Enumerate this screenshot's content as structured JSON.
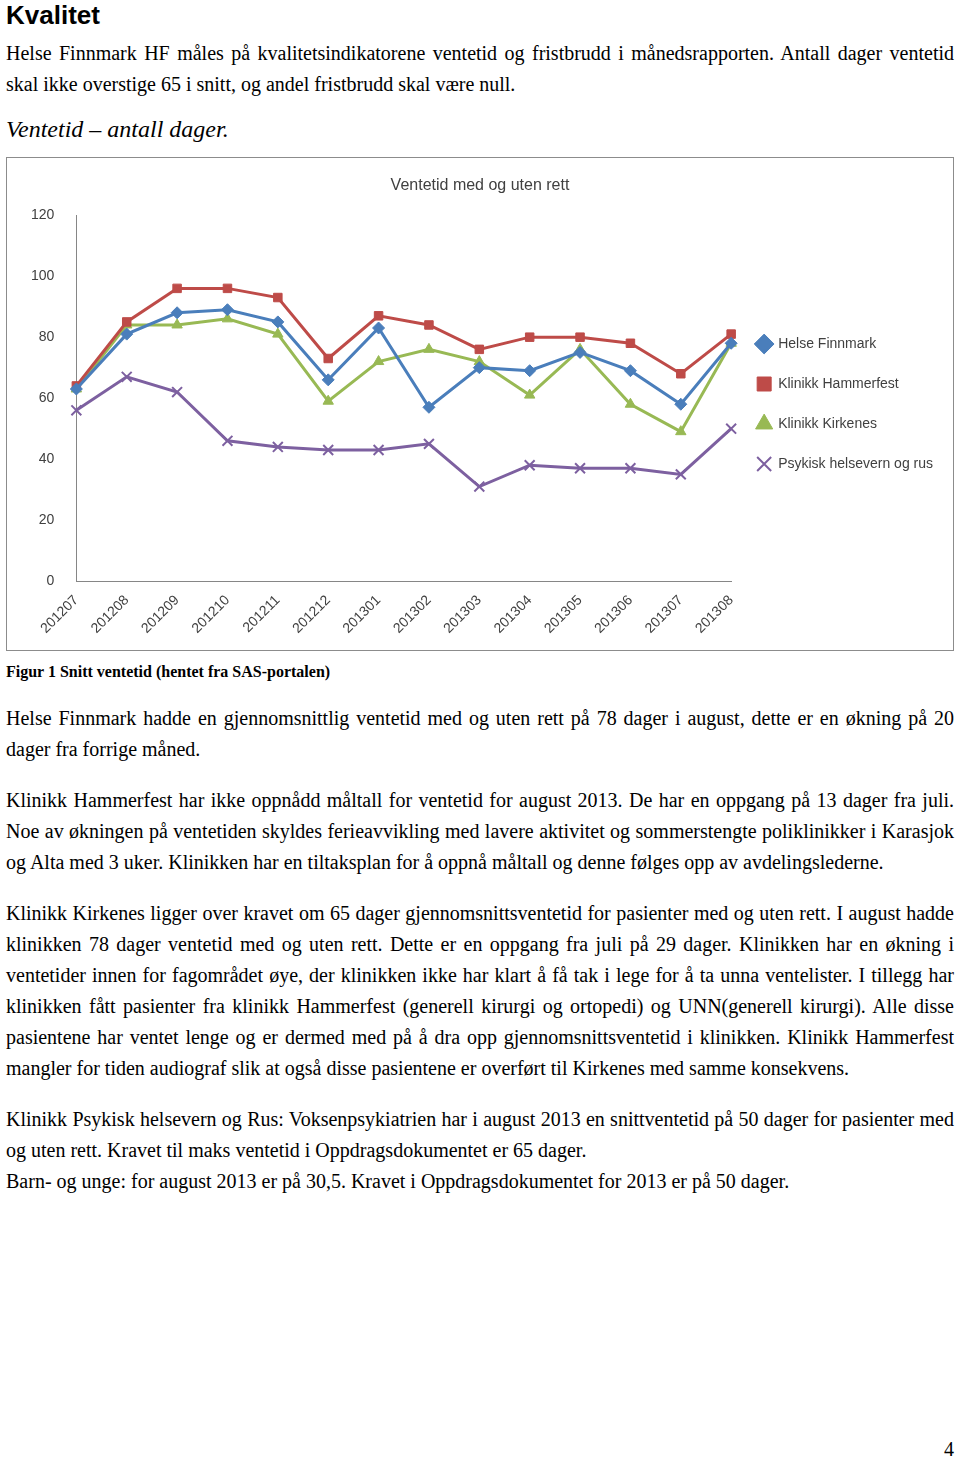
{
  "document": {
    "title": "Kvalitet",
    "intro": "Helse Finnmark HF måles på kvalitetsindikatorene ventetid og fristbrudd i månedsrapporten. Antall dager ventetid skal ikke overstige 65 i snitt, og andel fristbrudd skal være null.",
    "subtitle": "Ventetid – antall dager.",
    "caption": "Figur 1 Snitt ventetid (hentet fra SAS-portalen)",
    "paragraphs": [
      [
        "Helse Finnmark hadde en gjennomsnittlig ventetid med og uten rett på 78 dager i august, dette er en økning på 20 dager fra forrige måned."
      ],
      [
        "Klinikk Hammerfest har ikke oppnådd måltall for ventetid for august 2013. De har en oppgang på 13 dager fra juli. Noe av økningen på ventetiden skyldes ferieavvikling med lavere aktivitet og sommerstengte poliklinikker i Karasjok og Alta med 3 uker. Klinikken har en tiltaksplan for å oppnå måltall og denne følges opp av avdelingslederne."
      ],
      [
        "Klinikk Kirkenes ligger over kravet om 65 dager gjennomsnittsventetid for pasienter med og uten rett. I august hadde klinikken 78 dager ventetid med og uten rett. Dette er en oppgang fra juli på 29 dager. Klinikken har en økning i ventetider innen for fagområdet øye, der klinikken ikke har klart å få tak i lege for å ta unna ventelister. I tillegg har klinikken fått pasienter fra klinikk Hammerfest (generell kirurgi og ortopedi) og UNN(generell kirurgi). Alle disse pasientene har ventet lenge og er dermed med på å dra opp gjennomsnittsventetid i klinikken. Klinikk Hammerfest mangler for tiden audiograf slik at også disse pasientene er overført til Kirkenes med samme konsekvens."
      ],
      [
        "Klinikk Psykisk helsevern og Rus: Voksenpsykiatrien har i august 2013 en snittventetid på 50 dager for pasienter med og uten rett. Kravet til maks ventetid i Oppdragsdokumentet er 65 dager.",
        "Barn- og unge: for august 2013 er på 30,5. Kravet i Oppdragsdokumentet for 2013 er på 50 dager."
      ]
    ],
    "page_number": "4"
  },
  "chart_data": {
    "type": "line",
    "title": "Ventetid med og uten rett",
    "categories": [
      "201207",
      "201208",
      "201209",
      "201210",
      "201211",
      "201212",
      "201301",
      "201302",
      "201303",
      "201304",
      "201305",
      "201306",
      "201307",
      "201308"
    ],
    "series": [
      {
        "name": "Helse Finnmark",
        "color": "#4a7ebb",
        "marker": "diamond",
        "values": [
          63,
          81,
          88,
          89,
          85,
          66,
          83,
          57,
          70,
          69,
          75,
          69,
          58,
          78
        ]
      },
      {
        "name": "Klinikk Hammerfest",
        "color": "#be4b48",
        "marker": "square",
        "values": [
          64,
          85,
          96,
          96,
          93,
          73,
          87,
          84,
          76,
          80,
          80,
          78,
          68,
          81
        ]
      },
      {
        "name": "Klinikk Kirkenes",
        "color": "#98b954",
        "marker": "triangle",
        "values": [
          63,
          84,
          84,
          86,
          81,
          59,
          72,
          76,
          72,
          61,
          76,
          58,
          49,
          78
        ]
      },
      {
        "name": "Psykisk helsevern og rus",
        "color": "#7d60a0",
        "marker": "x",
        "values": [
          56,
          67,
          62,
          46,
          44,
          43,
          43,
          45,
          31,
          38,
          37,
          37,
          35,
          50
        ]
      }
    ],
    "ylim": [
      0,
      120
    ],
    "yticks": [
      0,
      20,
      40,
      60,
      80,
      100,
      120
    ],
    "grid": false,
    "legend": "right"
  }
}
